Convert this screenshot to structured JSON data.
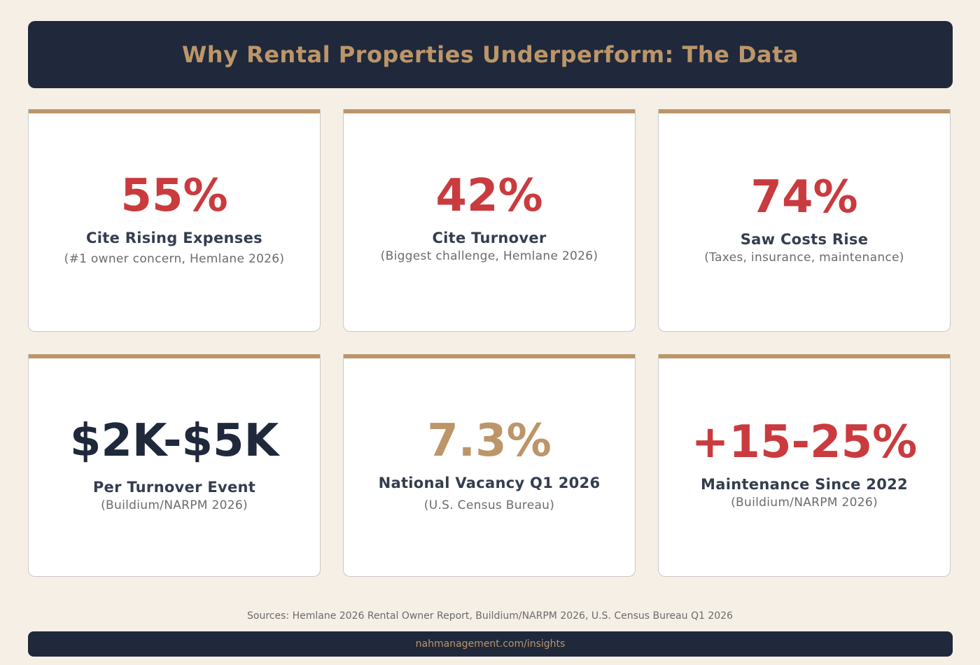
{
  "header": {
    "title": "Why Rental Properties Underperform: The Data"
  },
  "cards": [
    {
      "stat": "55%",
      "label": "Cite Rising Expenses",
      "note": "(#1 owner concern, Hemlane 2026)",
      "stat_color": "#c93b3e"
    },
    {
      "stat": "42%",
      "label": "Cite Turnover",
      "note": "(Biggest challenge, Hemlane 2026)",
      "stat_color": "#c93b3e"
    },
    {
      "stat": "74%",
      "label": "Saw Costs Rise",
      "note": "(Taxes, insurance, maintenance)",
      "stat_color": "#c93b3e"
    },
    {
      "stat": "$2K-$5K",
      "label": "Per Turnover Event",
      "note": "(Buildium/NARPM 2026)",
      "stat_color": "#1f293b"
    },
    {
      "stat": "7.3%",
      "label": "National Vacancy Q1 2026",
      "note": "(U.S. Census Bureau)",
      "stat_color": "#bc9569"
    },
    {
      "stat": "+15-25%",
      "label": "Maintenance Since 2022",
      "note": "(Buildium/NARPM 2026)",
      "stat_color": "#c93b3e"
    }
  ],
  "sources": "Sources: Hemlane 2026 Rental Owner Report, Buildium/NARPM 2026, U.S. Census Bureau Q1 2026",
  "footer": {
    "link": "nahmanagement.com/insights"
  },
  "colors": {
    "navy": "#1f293b",
    "tan": "#bc9569",
    "red": "#c93b3e",
    "background": "#f5efe6"
  }
}
